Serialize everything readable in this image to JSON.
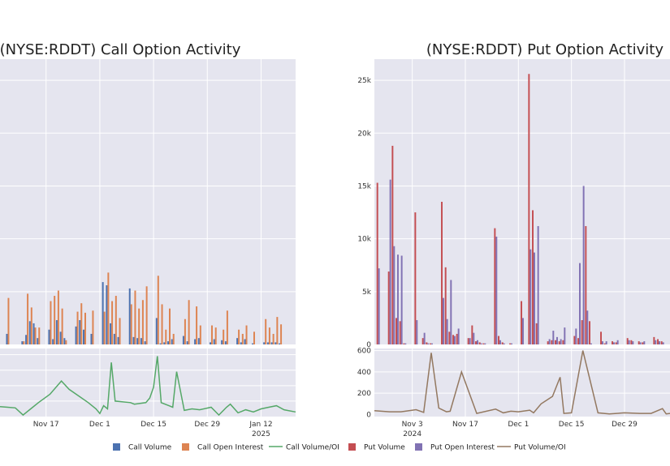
{
  "legend": [
    {
      "label": "Call Volume",
      "color": "#4c72b0",
      "kind": "bar"
    },
    {
      "label": "Call Open Interest",
      "color": "#dd8452",
      "kind": "bar"
    },
    {
      "label": "Call Volume/OI",
      "color": "#55a868",
      "kind": "line"
    },
    {
      "label": "Put Volume",
      "color": "#c44e52",
      "kind": "bar"
    },
    {
      "label": "Put Open Interest",
      "color": "#8172b3",
      "kind": "bar"
    },
    {
      "label": "Put Volume/OI",
      "color": "#937860",
      "kind": "line"
    }
  ],
  "chart_data": [
    {
      "type": "bar",
      "title": "(NYSE:RDDT) Call Option Activity",
      "x_tick_labels": [
        {
          "date": "2024-11-17",
          "label": "Nov 17"
        },
        {
          "date": "2024-12-01",
          "label": "Dec 1"
        },
        {
          "date": "2024-12-15",
          "label": "Dec 15"
        },
        {
          "date": "2024-12-29",
          "label": "Dec 29"
        },
        {
          "date": "2025-01-12",
          "label": "Jan 12",
          "sublabel": "2025"
        }
      ],
      "x_range": [
        "2024-11-05",
        "2025-01-21"
      ],
      "grid": true,
      "series": [
        {
          "name": "Call Volume",
          "color": "#4c72b0",
          "x": [
            "2024-11-07",
            "2024-11-11",
            "2024-11-12",
            "2024-11-13",
            "2024-11-14",
            "2024-11-15",
            "2024-11-18",
            "2024-11-19",
            "2024-11-20",
            "2024-11-21",
            "2024-11-22",
            "2024-11-25",
            "2024-11-26",
            "2024-11-27",
            "2024-11-29",
            "2024-12-02",
            "2024-12-03",
            "2024-12-04",
            "2024-12-05",
            "2024-12-06",
            "2024-12-09",
            "2024-12-10",
            "2024-12-11",
            "2024-12-12",
            "2024-12-13",
            "2024-12-16",
            "2024-12-17",
            "2024-12-18",
            "2024-12-19",
            "2024-12-20",
            "2024-12-23",
            "2024-12-24",
            "2024-12-26",
            "2024-12-27",
            "2024-12-30",
            "2024-12-31",
            "2025-01-02",
            "2025-01-03",
            "2025-01-06",
            "2025-01-07",
            "2025-01-08",
            "2025-01-10",
            "2025-01-13",
            "2025-01-14",
            "2025-01-15",
            "2025-01-16",
            "2025-01-17"
          ],
          "values": [
            1000,
            300,
            900,
            2200,
            2000,
            600,
            1400,
            500,
            2300,
            1200,
            600,
            1700,
            2300,
            1400,
            1000,
            5900,
            5600,
            2000,
            1000,
            700,
            5300,
            700,
            600,
            600,
            300,
            2500,
            100,
            200,
            300,
            500,
            800,
            300,
            500,
            600,
            200,
            500,
            400,
            300,
            600,
            200,
            500,
            100,
            200,
            200,
            200,
            200,
            100
          ]
        },
        {
          "name": "Call Open Interest",
          "color": "#dd8452",
          "x": [
            "2024-11-07",
            "2024-11-11",
            "2024-11-12",
            "2024-11-13",
            "2024-11-14",
            "2024-11-15",
            "2024-11-18",
            "2024-11-19",
            "2024-11-20",
            "2024-11-21",
            "2024-11-22",
            "2024-11-25",
            "2024-11-26",
            "2024-11-27",
            "2024-11-29",
            "2024-12-02",
            "2024-12-03",
            "2024-12-04",
            "2024-12-05",
            "2024-12-06",
            "2024-12-09",
            "2024-12-10",
            "2024-12-11",
            "2024-12-12",
            "2024-12-13",
            "2024-12-16",
            "2024-12-17",
            "2024-12-18",
            "2024-12-19",
            "2024-12-20",
            "2024-12-23",
            "2024-12-24",
            "2024-12-26",
            "2024-12-27",
            "2024-12-30",
            "2024-12-31",
            "2025-01-02",
            "2025-01-03",
            "2025-01-06",
            "2025-01-07",
            "2025-01-08",
            "2025-01-10",
            "2025-01-13",
            "2025-01-14",
            "2025-01-15",
            "2025-01-16",
            "2025-01-17"
          ],
          "values": [
            4400,
            300,
            4800,
            3500,
            1600,
            1600,
            4100,
            4600,
            5100,
            3400,
            400,
            3100,
            3900,
            3000,
            3200,
            3100,
            6800,
            4100,
            4600,
            2500,
            3800,
            5100,
            3400,
            4200,
            5500,
            6500,
            3800,
            1400,
            3400,
            1000,
            2400,
            4200,
            3600,
            1800,
            1800,
            1600,
            1400,
            3200,
            1400,
            1000,
            1800,
            1200,
            2400,
            1600,
            1000,
            2600,
            1900
          ]
        },
        {
          "name": "Call Volume/OI",
          "color": "#55a868",
          "x": [
            "2024-11-05",
            "2024-11-07",
            "2024-11-09",
            "2024-11-11",
            "2024-11-13",
            "2024-11-15",
            "2024-11-18",
            "2024-11-21",
            "2024-11-23",
            "2024-11-26",
            "2024-11-28",
            "2024-11-30",
            "2024-12-01",
            "2024-12-02",
            "2024-12-03",
            "2024-12-04",
            "2024-12-05",
            "2024-12-09",
            "2024-12-10",
            "2024-12-13",
            "2024-12-14",
            "2024-12-15",
            "2024-12-16",
            "2024-12-17",
            "2024-12-19",
            "2024-12-20",
            "2024-12-21",
            "2024-12-23",
            "2024-12-25",
            "2024-12-27",
            "2024-12-30",
            "2025-01-01",
            "2025-01-03",
            "2025-01-04",
            "2025-01-06",
            "2025-01-08",
            "2025-01-10",
            "2025-01-12",
            "2025-01-14",
            "2025-01-16",
            "2025-01-18",
            "2025-01-21"
          ],
          "values": [
            0.32,
            0.3,
            0.28,
            0.05,
            0.25,
            0.45,
            0.72,
            1.15,
            0.88,
            0.62,
            0.45,
            0.25,
            0.1,
            0.35,
            0.25,
            1.75,
            0.5,
            0.45,
            0.4,
            0.45,
            0.6,
            0.95,
            1.95,
            0.45,
            0.35,
            0.3,
            1.45,
            0.2,
            0.25,
            0.22,
            0.3,
            0.05,
            0.3,
            0.4,
            0.12,
            0.22,
            0.15,
            0.25,
            0.3,
            0.35,
            0.22,
            0.15
          ]
        }
      ]
    },
    {
      "type": "bar",
      "title": "(NYSE:RDDT) Put Option Activity",
      "x_tick_labels": [
        {
          "date": "2024-11-03",
          "label": "Nov 3",
          "sublabel": "2024"
        },
        {
          "date": "2024-11-17",
          "label": "Nov 17"
        },
        {
          "date": "2024-12-01",
          "label": "Dec 1"
        },
        {
          "date": "2024-12-15",
          "label": "Dec 15"
        },
        {
          "date": "2024-12-29",
          "label": "Dec 29"
        }
      ],
      "x_range": [
        "2024-10-24",
        "2025-01-10"
      ],
      "y_tick_labels": [
        "0",
        "5k",
        "10k",
        "15k",
        "20k",
        "25k"
      ],
      "y_range": [
        0,
        27000
      ],
      "y2_tick_labels": [
        "0",
        "200",
        "400",
        "600"
      ],
      "y2_range": [
        -20,
        620
      ],
      "grid": true,
      "series": [
        {
          "name": "Put Volume",
          "color": "#c44e52",
          "x": [
            "2024-10-25",
            "2024-10-28",
            "2024-10-29",
            "2024-10-30",
            "2024-10-31",
            "2024-11-01",
            "2024-11-04",
            "2024-11-06",
            "2024-11-07",
            "2024-11-08",
            "2024-11-11",
            "2024-11-12",
            "2024-11-13",
            "2024-11-14",
            "2024-11-15",
            "2024-11-18",
            "2024-11-19",
            "2024-11-20",
            "2024-11-21",
            "2024-11-22",
            "2024-11-25",
            "2024-11-26",
            "2024-11-27",
            "2024-11-29",
            "2024-12-02",
            "2024-12-04",
            "2024-12-05",
            "2024-12-06",
            "2024-12-09",
            "2024-12-10",
            "2024-12-11",
            "2024-12-12",
            "2024-12-13",
            "2024-12-16",
            "2024-12-17",
            "2024-12-18",
            "2024-12-19",
            "2024-12-20",
            "2024-12-23",
            "2024-12-24",
            "2024-12-26",
            "2024-12-27",
            "2024-12-30",
            "2024-12-31",
            "2025-01-02",
            "2025-01-03",
            "2025-01-06",
            "2025-01-07",
            "2025-01-08"
          ],
          "values": [
            15300,
            6900,
            18800,
            2500,
            2200,
            100,
            12500,
            600,
            200,
            100,
            13500,
            7300,
            1200,
            900,
            1000,
            600,
            1800,
            300,
            200,
            100,
            11000,
            800,
            200,
            100,
            4100,
            25600,
            12700,
            2000,
            300,
            400,
            400,
            300,
            400,
            800,
            600,
            2300,
            11200,
            2200,
            1200,
            100,
            300,
            200,
            600,
            400,
            300,
            200,
            700,
            500,
            300
          ]
        },
        {
          "name": "Put Open Interest",
          "color": "#8172b3",
          "x": [
            "2024-10-25",
            "2024-10-28",
            "2024-10-29",
            "2024-10-30",
            "2024-10-31",
            "2024-11-01",
            "2024-11-04",
            "2024-11-06",
            "2024-11-07",
            "2024-11-08",
            "2024-11-11",
            "2024-11-12",
            "2024-11-13",
            "2024-11-14",
            "2024-11-15",
            "2024-11-18",
            "2024-11-19",
            "2024-11-20",
            "2024-11-21",
            "2024-11-22",
            "2024-11-25",
            "2024-11-26",
            "2024-11-27",
            "2024-11-29",
            "2024-12-02",
            "2024-12-04",
            "2024-12-05",
            "2024-12-06",
            "2024-12-09",
            "2024-12-10",
            "2024-12-11",
            "2024-12-12",
            "2024-12-13",
            "2024-12-16",
            "2024-12-17",
            "2024-12-18",
            "2024-12-19",
            "2024-12-20",
            "2024-12-23",
            "2024-12-24",
            "2024-12-26",
            "2024-12-27",
            "2024-12-30",
            "2024-12-31",
            "2025-01-02",
            "2025-01-03",
            "2025-01-06",
            "2025-01-07",
            "2025-01-08"
          ],
          "values": [
            7200,
            15600,
            9300,
            8500,
            8400,
            100,
            2300,
            1100,
            100,
            100,
            4400,
            2400,
            6100,
            800,
            1500,
            600,
            1100,
            400,
            100,
            100,
            10200,
            400,
            100,
            100,
            2500,
            9000,
            8700,
            11200,
            500,
            1300,
            700,
            500,
            1600,
            1500,
            7700,
            15000,
            3200,
            100,
            300,
            300,
            200,
            400,
            400,
            300,
            200,
            300,
            400,
            300,
            200
          ]
        },
        {
          "name": "Put Volume/OI",
          "color": "#937860",
          "x": [
            "2024-10-24",
            "2024-10-28",
            "2024-10-31",
            "2024-11-04",
            "2024-11-06",
            "2024-11-08",
            "2024-11-10",
            "2024-11-12",
            "2024-11-13",
            "2024-11-16",
            "2024-11-20",
            "2024-11-25",
            "2024-11-27",
            "2024-11-29",
            "2024-12-01",
            "2024-12-04",
            "2024-12-05",
            "2024-12-07",
            "2024-12-10",
            "2024-12-12",
            "2024-12-13",
            "2024-12-15",
            "2024-12-18",
            "2024-12-22",
            "2024-12-25",
            "2024-12-29",
            "2025-01-02",
            "2025-01-05",
            "2025-01-08",
            "2025-01-09",
            "2025-01-10"
          ],
          "values": [
            35,
            25,
            25,
            45,
            20,
            580,
            60,
            25,
            30,
            400,
            10,
            50,
            15,
            30,
            25,
            40,
            15,
            100,
            170,
            350,
            10,
            15,
            600,
            15,
            5,
            15,
            10,
            10,
            55,
            5,
            10
          ]
        }
      ]
    }
  ]
}
